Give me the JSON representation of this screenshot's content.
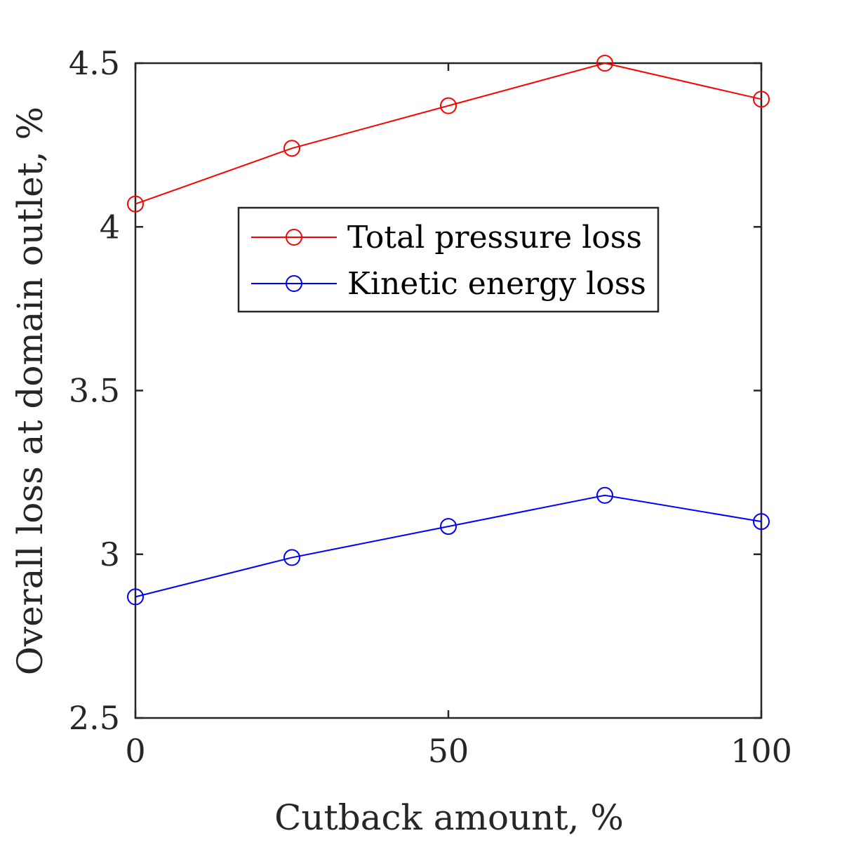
{
  "chart_data": {
    "type": "line",
    "title": "",
    "xlabel": "Cutback amount, %",
    "ylabel": "Overall loss at domain outlet, %",
    "xlim": [
      0,
      100
    ],
    "ylim": [
      2.5,
      4.5
    ],
    "xticks": [
      0,
      50,
      100
    ],
    "xtick_labels": [
      "0",
      "50",
      "100"
    ],
    "yticks": [
      2.5,
      3,
      3.5,
      4,
      4.5
    ],
    "ytick_labels": [
      "2.5",
      "3",
      "3.5",
      "4",
      "4.5"
    ],
    "grid": false,
    "box": true,
    "legend_position": "upper-middle",
    "x": [
      0,
      25,
      50,
      75,
      100
    ],
    "series": [
      {
        "name": "Total pressure loss",
        "color": "#ff0000",
        "marker": "open-circle",
        "values": [
          4.07,
          4.24,
          4.37,
          4.5,
          4.39
        ]
      },
      {
        "name": "Kinetic energy loss",
        "color": "#0000ff",
        "marker": "open-circle",
        "values": [
          2.87,
          2.99,
          3.085,
          3.18,
          3.1
        ]
      }
    ]
  }
}
